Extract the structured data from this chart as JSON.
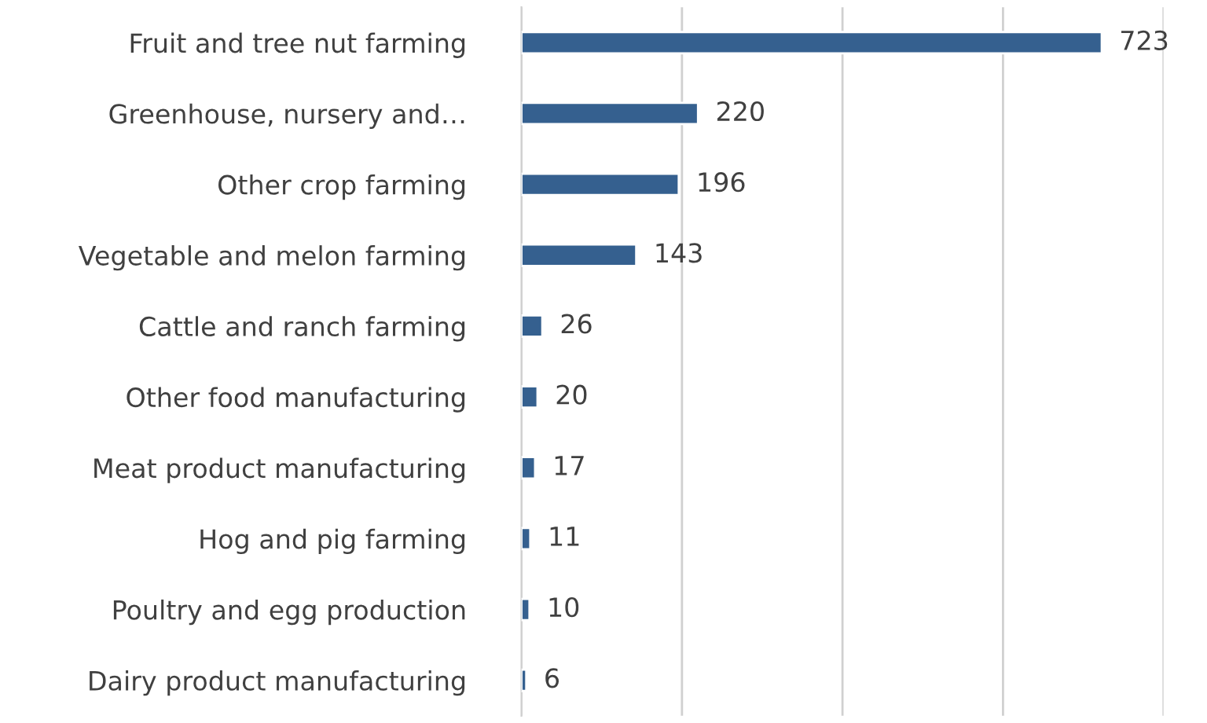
{
  "chart_data": {
    "type": "bar",
    "orientation": "horizontal",
    "categories": [
      "Fruit and tree nut farming",
      "Greenhouse, nursery and…",
      "Other crop farming",
      "Vegetable and melon farming",
      "Cattle and ranch farming",
      "Other food manufacturing",
      "Meat product manufacturing",
      "Hog and pig farming",
      "Poultry and egg production",
      "Dairy product manufacturing"
    ],
    "values": [
      723,
      220,
      196,
      143,
      26,
      20,
      17,
      11,
      10,
      6
    ],
    "color": "#35608f",
    "xlim": [
      0,
      800
    ],
    "xticks": [
      {
        "value": 0,
        "label": null
      },
      {
        "value": 200,
        "label": null
      },
      {
        "value": 400,
        "label": null
      },
      {
        "value": 600,
        "label": null
      },
      {
        "value": 800,
        "label": null
      }
    ],
    "grid": "x",
    "data_labels": true,
    "tick_labels": "y"
  }
}
